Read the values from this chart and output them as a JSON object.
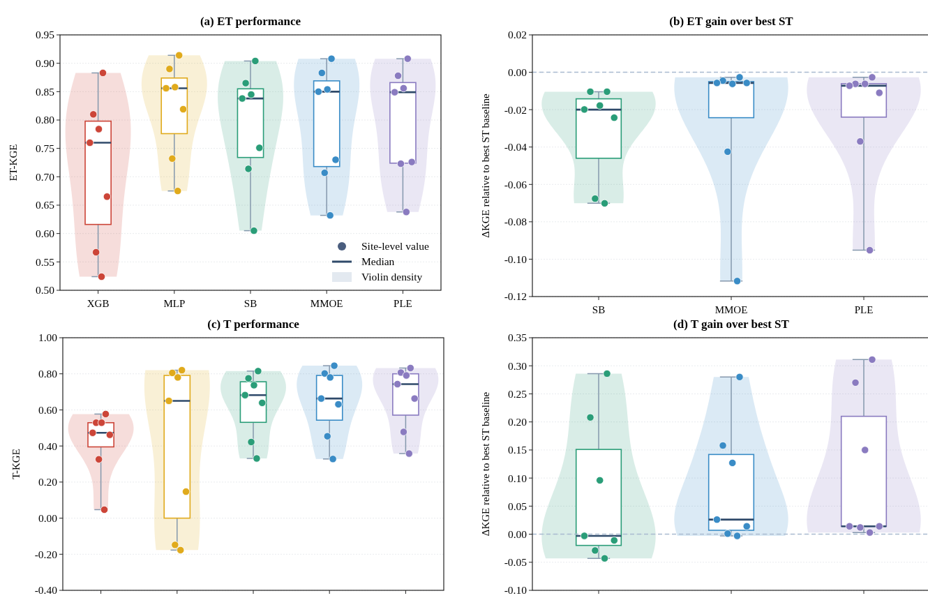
{
  "chart_data": [
    {
      "type": "box",
      "title": "(a) ET performance",
      "ylabel": "ET-KGE",
      "categories": [
        "XGB",
        "MLP",
        "SB",
        "MMOE",
        "PLE"
      ],
      "ylim": [
        0.5,
        0.95
      ],
      "yticks": [
        {
          "value": 0.5,
          "label": "0.50"
        },
        {
          "value": 0.55,
          "label": "0.55"
        },
        {
          "value": 0.6,
          "label": "0.60"
        },
        {
          "value": 0.65,
          "label": "0.65"
        },
        {
          "value": 0.7,
          "label": "0.70"
        },
        {
          "value": 0.75,
          "label": "0.75"
        },
        {
          "value": 0.8,
          "label": "0.80"
        },
        {
          "value": 0.85,
          "label": "0.85"
        },
        {
          "value": 0.9,
          "label": "0.90"
        },
        {
          "value": 0.95,
          "label": "0.95"
        }
      ],
      "grid": "y",
      "legend": "bottom right",
      "annotations": [
        "Median",
        "Violin density"
      ],
      "series": [
        {
          "type": "box",
          "colors": [
            "#cc4538",
            "#e0aa1c",
            "#2a9d78",
            "#3a8cc6",
            "#8a7bc0"
          ],
          "boxes": [
            {
              "low": 0.524,
              "q1": 0.616,
              "median": 0.76,
              "q3": 0.798,
              "high": 0.883
            },
            {
              "low": 0.675,
              "q1": 0.776,
              "median": 0.856,
              "q3": 0.874,
              "high": 0.914
            },
            {
              "low": 0.605,
              "q1": 0.734,
              "median": 0.838,
              "q3": 0.855,
              "high": 0.904
            },
            {
              "low": 0.632,
              "q1": 0.718,
              "median": 0.85,
              "q3": 0.869,
              "high": 0.908
            },
            {
              "low": 0.638,
              "q1": 0.724,
              "median": 0.849,
              "q3": 0.866,
              "high": 0.908
            }
          ]
        },
        {
          "type": "scatter",
          "name": "Site-level value",
          "color": "#4a5d7e",
          "marker": "circle",
          "x": [
            "XGB",
            "XGB",
            "XGB",
            "XGB",
            "XGB",
            "XGB",
            "XGB",
            "MLP",
            "MLP",
            "MLP",
            "MLP",
            "MLP",
            "MLP",
            "MLP",
            "SB",
            "SB",
            "SB",
            "SB",
            "SB",
            "SB",
            "SB",
            "MMOE",
            "MMOE",
            "MMOE",
            "MMOE",
            "MMOE",
            "MMOE",
            "MMOE",
            "PLE",
            "PLE",
            "PLE",
            "PLE",
            "PLE",
            "PLE",
            "PLE"
          ],
          "values": [
            0.883,
            0.81,
            0.784,
            0.76,
            0.665,
            0.567,
            0.524,
            0.914,
            0.89,
            0.858,
            0.856,
            0.819,
            0.732,
            0.675,
            0.904,
            0.865,
            0.845,
            0.838,
            0.751,
            0.714,
            0.605,
            0.908,
            0.883,
            0.854,
            0.85,
            0.73,
            0.707,
            0.632,
            0.908,
            0.878,
            0.856,
            0.849,
            0.726,
            0.723,
            0.638
          ],
          "colors": [
            "#cc4538",
            "#cc4538",
            "#cc4538",
            "#cc4538",
            "#cc4538",
            "#cc4538",
            "#cc4538",
            "#e0aa1c",
            "#e0aa1c",
            "#e0aa1c",
            "#e0aa1c",
            "#e0aa1c",
            "#e0aa1c",
            "#e0aa1c",
            "#2a9d78",
            "#2a9d78",
            "#2a9d78",
            "#2a9d78",
            "#2a9d78",
            "#2a9d78",
            "#2a9d78",
            "#3a8cc6",
            "#3a8cc6",
            "#3a8cc6",
            "#3a8cc6",
            "#3a8cc6",
            "#3a8cc6",
            "#3a8cc6",
            "#8a7bc0",
            "#8a7bc0",
            "#8a7bc0",
            "#8a7bc0",
            "#8a7bc0",
            "#8a7bc0",
            "#8a7bc0"
          ]
        }
      ]
    },
    {
      "type": "box",
      "title": "(b) ET gain over best ST",
      "ylabel": "ΔKGE relative to best ST baseline",
      "categories": [
        "SB",
        "MMOE",
        "PLE"
      ],
      "ylim": [
        -0.12,
        0.02
      ],
      "yticks": [
        {
          "value": -0.12,
          "label": "-0.12"
        },
        {
          "value": -0.1,
          "label": "-0.10"
        },
        {
          "value": -0.08,
          "label": "-0.08"
        },
        {
          "value": -0.06,
          "label": "-0.06"
        },
        {
          "value": -0.04,
          "label": "-0.04"
        },
        {
          "value": -0.02,
          "label": "-0.02"
        },
        {
          "value": 0,
          "label": "0.00"
        },
        {
          "value": 0.02,
          "label": "0.02"
        }
      ],
      "grid": "y",
      "ref_lines": [
        {
          "axis": "y",
          "value": 0,
          "color": "#a9bad0",
          "line_style": "dashed"
        }
      ],
      "series": [
        {
          "type": "box",
          "colors": [
            "#2a9d78",
            "#3a8cc6",
            "#8a7bc0"
          ],
          "boxes": [
            {
              "low": -0.0701,
              "q1": -0.046,
              "median": -0.02,
              "q3": -0.0142,
              "high": -0.0104
            },
            {
              "low": -0.1117,
              "q1": -0.0243,
              "median": -0.0057,
              "q3": -0.005,
              "high": -0.0027
            },
            {
              "low": -0.0952,
              "q1": -0.024,
              "median": -0.0072,
              "q3": -0.0061,
              "high": -0.0027
            }
          ]
        },
        {
          "type": "scatter",
          "marker": "circle",
          "x": [
            "SB",
            "SB",
            "SB",
            "SB",
            "SB",
            "SB",
            "SB",
            "MMOE",
            "MMOE",
            "MMOE",
            "MMOE",
            "MMOE",
            "MMOE",
            "MMOE",
            "PLE",
            "PLE",
            "PLE",
            "PLE",
            "PLE",
            "PLE",
            "PLE"
          ],
          "values": [
            -0.0104,
            -0.0104,
            -0.0178,
            -0.0199,
            -0.0243,
            -0.0676,
            -0.0701,
            -0.0027,
            -0.0045,
            -0.0062,
            -0.0057,
            -0.0057,
            -0.0425,
            -0.1117,
            -0.0027,
            -0.0062,
            -0.0062,
            -0.0072,
            -0.011,
            -0.037,
            -0.0952
          ],
          "colors": [
            "#2a9d78",
            "#2a9d78",
            "#2a9d78",
            "#2a9d78",
            "#2a9d78",
            "#2a9d78",
            "#2a9d78",
            "#3a8cc6",
            "#3a8cc6",
            "#3a8cc6",
            "#3a8cc6",
            "#3a8cc6",
            "#3a8cc6",
            "#3a8cc6",
            "#8a7bc0",
            "#8a7bc0",
            "#8a7bc0",
            "#8a7bc0",
            "#8a7bc0",
            "#8a7bc0",
            "#8a7bc0"
          ]
        }
      ]
    },
    {
      "type": "box",
      "title": "(c) T performance",
      "ylabel": "T-KGE",
      "categories": [
        "XGB",
        "MLP",
        "SB",
        "MMOE",
        "PLE"
      ],
      "tick_labels": "y",
      "ylim": [
        -0.4,
        1.0
      ],
      "yticks": [
        {
          "value": -0.4,
          "label": "-0.40"
        },
        {
          "value": -0.2,
          "label": "-0.20"
        },
        {
          "value": 0,
          "label": "0.00"
        },
        {
          "value": 0.2,
          "label": "0.20"
        },
        {
          "value": 0.4,
          "label": "0.40"
        },
        {
          "value": 0.6,
          "label": "0.60"
        },
        {
          "value": 0.8,
          "label": "0.80"
        },
        {
          "value": 1.0,
          "label": "1.00"
        }
      ],
      "grid": "y",
      "series": [
        {
          "type": "box",
          "colors": [
            "#cc4538",
            "#e0aa1c",
            "#2a9d78",
            "#3a8cc6",
            "#8a7bc0"
          ],
          "boxes": [
            {
              "low": 0.047,
              "q1": 0.395,
              "median": 0.473,
              "q3": 0.529,
              "high": 0.577
            },
            {
              "low": -0.177,
              "q1": 0.0,
              "median": 0.65,
              "q3": 0.791,
              "high": 0.82
            },
            {
              "low": 0.331,
              "q1": 0.531,
              "median": 0.682,
              "q3": 0.756,
              "high": 0.815
            },
            {
              "low": 0.328,
              "q1": 0.543,
              "median": 0.663,
              "q3": 0.791,
              "high": 0.845
            },
            {
              "low": 0.358,
              "q1": 0.571,
              "median": 0.743,
              "q3": 0.8,
              "high": 0.832
            }
          ]
        },
        {
          "type": "scatter",
          "marker": "circle",
          "x": [
            "XGB",
            "XGB",
            "XGB",
            "XGB",
            "XGB",
            "XGB",
            "XGB",
            "MLP",
            "MLP",
            "MLP",
            "MLP",
            "MLP",
            "MLP",
            "MLP",
            "SB",
            "SB",
            "SB",
            "SB",
            "SB",
            "SB",
            "SB",
            "MMOE",
            "MMOE",
            "MMOE",
            "MMOE",
            "MMOE",
            "MMOE",
            "MMOE",
            "PLE",
            "PLE",
            "PLE",
            "PLE",
            "PLE",
            "PLE",
            "PLE"
          ],
          "values": [
            0.577,
            0.529,
            0.529,
            0.473,
            0.462,
            0.326,
            0.047,
            0.82,
            0.805,
            0.78,
            0.65,
            0.147,
            -0.148,
            -0.177,
            0.815,
            0.775,
            0.737,
            0.682,
            0.639,
            0.422,
            0.331,
            0.845,
            0.802,
            0.78,
            0.663,
            0.631,
            0.454,
            0.328,
            0.832,
            0.807,
            0.791,
            0.743,
            0.663,
            0.478,
            0.358
          ],
          "colors": [
            "#cc4538",
            "#cc4538",
            "#cc4538",
            "#cc4538",
            "#cc4538",
            "#cc4538",
            "#cc4538",
            "#e0aa1c",
            "#e0aa1c",
            "#e0aa1c",
            "#e0aa1c",
            "#e0aa1c",
            "#e0aa1c",
            "#e0aa1c",
            "#2a9d78",
            "#2a9d78",
            "#2a9d78",
            "#2a9d78",
            "#2a9d78",
            "#2a9d78",
            "#2a9d78",
            "#3a8cc6",
            "#3a8cc6",
            "#3a8cc6",
            "#3a8cc6",
            "#3a8cc6",
            "#3a8cc6",
            "#3a8cc6",
            "#8a7bc0",
            "#8a7bc0",
            "#8a7bc0",
            "#8a7bc0",
            "#8a7bc0",
            "#8a7bc0",
            "#8a7bc0"
          ]
        }
      ]
    },
    {
      "type": "box",
      "title": "(d) T gain over best ST",
      "ylabel": "ΔKGE relative to best ST baseline",
      "categories": [
        "SB",
        "MMOE",
        "PLE"
      ],
      "tick_labels": "y",
      "ylim": [
        -0.1,
        0.35
      ],
      "yticks": [
        {
          "value": -0.1,
          "label": "-0.10"
        },
        {
          "value": -0.05,
          "label": "-0.05"
        },
        {
          "value": 0,
          "label": "0.00"
        },
        {
          "value": 0.05,
          "label": "0.05"
        },
        {
          "value": 0.1,
          "label": "0.10"
        },
        {
          "value": 0.15,
          "label": "0.15"
        },
        {
          "value": 0.2,
          "label": "0.20"
        },
        {
          "value": 0.25,
          "label": "0.25"
        },
        {
          "value": 0.3,
          "label": "0.30"
        },
        {
          "value": 0.35,
          "label": "0.35"
        }
      ],
      "grid": "y",
      "ref_lines": [
        {
          "axis": "y",
          "value": 0,
          "color": "#a9bad0",
          "line_style": "dashed"
        }
      ],
      "series": [
        {
          "type": "box",
          "colors": [
            "#2a9d78",
            "#3a8cc6",
            "#8a7bc0"
          ],
          "boxes": [
            {
              "low": -0.043,
              "q1": -0.02,
              "median": -0.003,
              "q3": 0.151,
              "high": 0.286
            },
            {
              "low": -0.003,
              "q1": 0.007,
              "median": 0.026,
              "q3": 0.142,
              "high": 0.28
            },
            {
              "low": 0.003,
              "q1": 0.014,
              "median": 0.014,
              "q3": 0.21,
              "high": 0.311
            }
          ]
        },
        {
          "type": "scatter",
          "marker": "circle",
          "x": [
            "SB",
            "SB",
            "SB",
            "SB",
            "SB",
            "SB",
            "SB",
            "MMOE",
            "MMOE",
            "MMOE",
            "MMOE",
            "MMOE",
            "MMOE",
            "MMOE",
            "PLE",
            "PLE",
            "PLE",
            "PLE",
            "PLE",
            "PLE",
            "PLE"
          ],
          "values": [
            0.286,
            0.208,
            0.096,
            -0.003,
            -0.011,
            -0.029,
            -0.043,
            0.28,
            0.158,
            0.127,
            0.026,
            0.014,
            0.001,
            -0.003,
            0.311,
            0.27,
            0.15,
            0.014,
            0.014,
            0.012,
            0.003
          ],
          "colors": [
            "#2a9d78",
            "#2a9d78",
            "#2a9d78",
            "#2a9d78",
            "#2a9d78",
            "#2a9d78",
            "#2a9d78",
            "#3a8cc6",
            "#3a8cc6",
            "#3a8cc6",
            "#3a8cc6",
            "#3a8cc6",
            "#3a8cc6",
            "#3a8cc6",
            "#8a7bc0",
            "#8a7bc0",
            "#8a7bc0",
            "#8a7bc0",
            "#8a7bc0",
            "#8a7bc0",
            "#8a7bc0"
          ]
        }
      ]
    }
  ]
}
